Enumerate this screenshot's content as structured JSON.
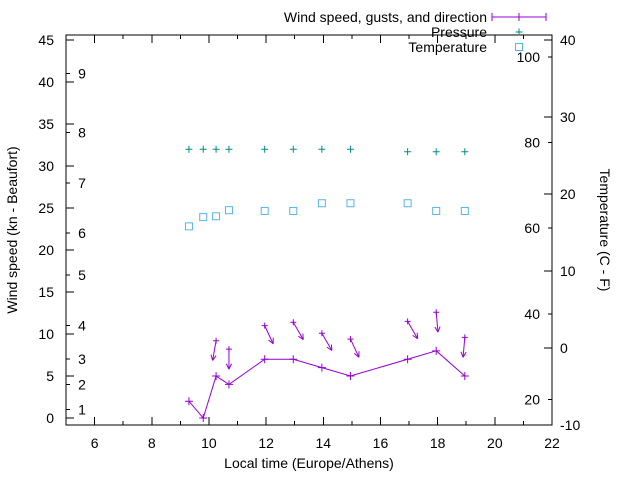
{
  "chart_data": {
    "type": "line",
    "title": "",
    "xlabel": "Local time (Europe/Athens)",
    "ylabel_left": "Wind speed (kn - Beaufort)",
    "ylabel_right": "Temperature (C - F)",
    "axes": {
      "x_range": [
        5,
        22
      ],
      "y_left_range": [
        -0.83,
        45.6
      ],
      "y_right_range": [
        -10,
        40.65
      ],
      "x_ticks_major": [
        6,
        8,
        10,
        12,
        14,
        16,
        18,
        20,
        22
      ],
      "x_ticks_minor": [
        7,
        9,
        11,
        13,
        15,
        17,
        19,
        21
      ],
      "y_left_ticks": [
        0,
        5,
        10,
        15,
        20,
        25,
        30,
        35,
        40,
        45
      ],
      "beaufort": {
        "labels": [
          "1",
          "2",
          "3",
          "4",
          "5",
          "6",
          "7",
          "8",
          "9"
        ],
        "kn_positions": [
          1,
          4,
          7,
          11,
          17,
          22,
          28,
          34,
          41
        ]
      },
      "y_right_ticks_c": [
        -10,
        0,
        10,
        20,
        30,
        40
      ],
      "y_right_ticks_f": [
        20,
        40,
        60,
        80,
        100
      ],
      "grid": false,
      "legend_position": "top-right"
    },
    "times": [
      9.3,
      9.8,
      10.25,
      10.7,
      11.95,
      12.95,
      13.95,
      14.95,
      16.95,
      17.95,
      18.95
    ],
    "series": {
      "wind_speed_kn": [
        2,
        0,
        5,
        4,
        7,
        7,
        6,
        5,
        7,
        8,
        5
      ],
      "gusts": [
        {
          "t": 10.25,
          "kn": 9.2,
          "dir_deg": 190
        },
        {
          "t": 10.7,
          "kn": 8.2,
          "dir_deg": 180
        },
        {
          "t": 11.95,
          "kn": 11.0,
          "dir_deg": 155
        },
        {
          "t": 12.95,
          "kn": 11.4,
          "dir_deg": 150
        },
        {
          "t": 13.95,
          "kn": 10.1,
          "dir_deg": 150
        },
        {
          "t": 14.95,
          "kn": 9.4,
          "dir_deg": 155
        },
        {
          "t": 16.95,
          "kn": 11.5,
          "dir_deg": 150
        },
        {
          "t": 17.95,
          "kn": 12.6,
          "dir_deg": 175
        },
        {
          "t": 18.95,
          "kn": 9.6,
          "dir_deg": 185
        }
      ],
      "pressure_plotted_left_axis": [
        32,
        32,
        32,
        32,
        32,
        32,
        32,
        32,
        31.7,
        31.7,
        31.7
      ],
      "temperature_c": [
        15.8,
        17.0,
        17.1,
        17.9,
        17.8,
        17.8,
        18.8,
        18.8,
        18.8,
        17.8,
        17.8
      ]
    },
    "legend": [
      {
        "key": "wind",
        "label": "Wind speed, gusts, and direction",
        "sample": "errorbar-line",
        "color": "#9400d3"
      },
      {
        "key": "pressure",
        "label": "Pressure",
        "sample": "plus",
        "color": "#008b8b"
      },
      {
        "key": "temperature",
        "label": "Temperature",
        "sample": "square",
        "color": "#56b4e9"
      }
    ],
    "colors": {
      "wind": "#9400d3",
      "pressure": "#008b8b",
      "temperature": "#56b4e9",
      "axis": "#000000",
      "background": "#ffffff"
    }
  }
}
